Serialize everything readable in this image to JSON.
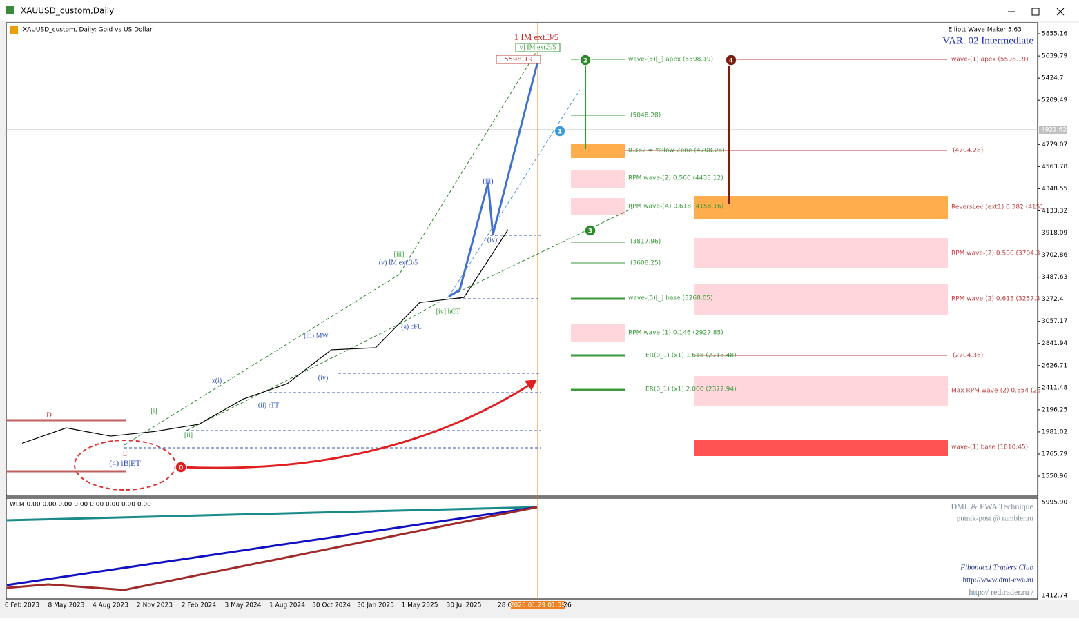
{
  "window": {
    "title": "XAUUSD_custom,Daily"
  },
  "chart_data": {
    "type": "line",
    "title": "XAUUSD_custom, Daily:  Gold vs US Dollar",
    "x": [
      "6 Feb 2023",
      "8 May 2023",
      "4 Aug 2023",
      "2 Nov 2023",
      "2 Feb 2024",
      "3 May 2024",
      "1 Aug 2024",
      "30 Oct 2024",
      "30 Jan 2025",
      "1 May 2025",
      "30 Jul 2025",
      "28 Oct"
    ],
    "series": [
      {
        "name": "XAUUSD",
        "color": "#000000",
        "values": [
          1870,
          2020,
          1940,
          1985,
          2055,
          2300,
          2450,
          2780,
          2800,
          3240,
          3290,
          3950
        ]
      }
    ],
    "ylim": [
      1356,
      5963
    ],
    "yticks": [
      5855.16,
      5639.79,
      5424.7,
      5209.49,
      4779.07,
      4563.78,
      4348.55,
      4133.32,
      3918.09,
      3702.86,
      3487.63,
      3272.4,
      3057.17,
      2841.94,
      2626.71,
      2411.48,
      2196.25,
      1981.02,
      1765.79,
      1550.96
    ],
    "current_price": 4921.62,
    "cursor_time": "2026.01.29 01:39",
    "cursor_tail": "26"
  },
  "header": {
    "tool": "Elliott Wave Maker 5.63",
    "variant": "VAR. 02 Intermediate"
  },
  "annotations": [
    "1 IM ext.3/5",
    "v] IM ext.3/5",
    "5598.19",
    "wave-(5)[_] apex (5598.19)",
    "wave-(1) apex (5598.19)",
    "(5048.28)",
    "0.382 = Yellow Zone (4708.08)",
    "(4704.28)",
    "RPM wave-(2) 0.500 (4433.12)",
    "RPM wave-(A) 0.618 (4158.16)",
    "ReversLev (ext1) 0.382 (4151",
    "(3817.96)",
    "(3608.25)",
    "RPM wave-(2) 0.500 (3704.3",
    "wave-(5)[_] base (3268.05)",
    "RPM wave-(2) 0.618 (3257.3",
    "RPM wave-(1) 0.146 (2927.85)",
    "ER(0_1) (x1) 1.618 (2713.48)",
    "(2704.36)",
    "ER(0_1) (x1) 2.000 (2377.94)",
    "Max RPM wave-(2) 0.854 (23",
    "wave-(1) base (1810.45)",
    "[iii]",
    "(v) IM ext.3/5",
    "(iii)",
    "(iv)",
    "[iv] hCT",
    "(a) cFL",
    "(iii) MW",
    "(iv)",
    "(ii) rTT",
    "x(i)",
    "[i]",
    "[ii]",
    "D",
    "E",
    "(4) iB|ET"
  ],
  "markers": [
    "0",
    "1",
    "2",
    "3",
    "4"
  ],
  "indicator": {
    "label": "WLM 0.00 0.00 0.00 0.00 0.00 0.00 0.00 0.00",
    "yticks": [
      "5995.90",
      "1412.74"
    ]
  },
  "credits": [
    "DML & EWA Technique",
    "putnik-post @ rambler.ru",
    "Fibonacci    Traders    Club",
    "http://www.dml-ewa.ru",
    "http:// redtrader.ru /"
  ]
}
